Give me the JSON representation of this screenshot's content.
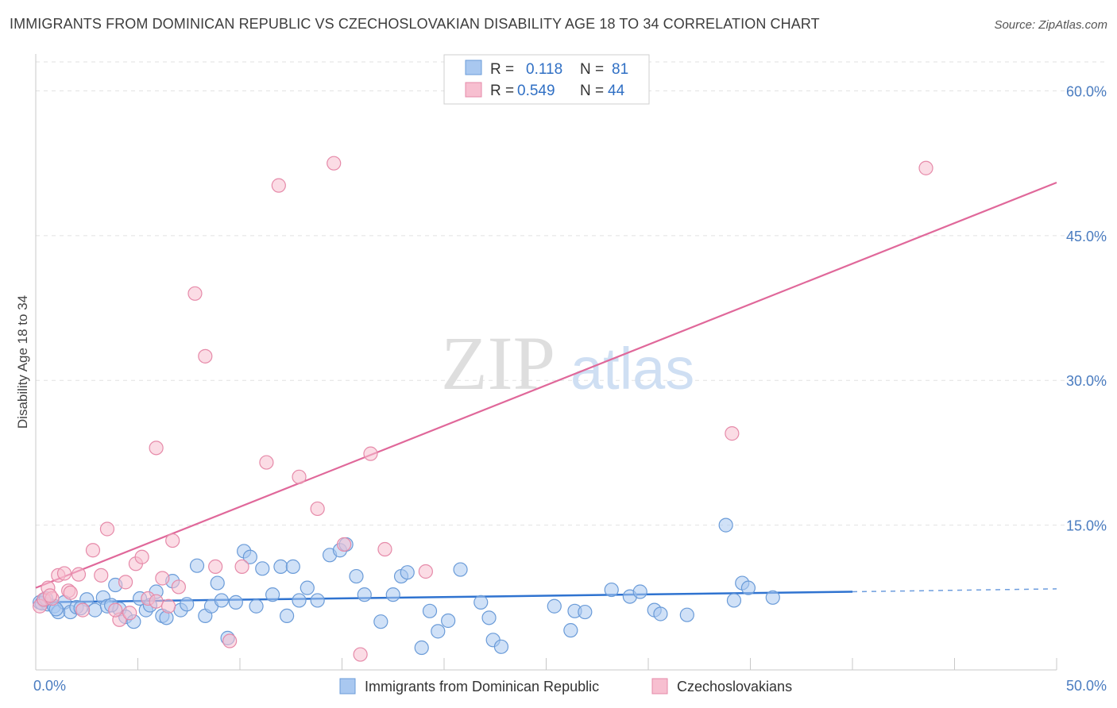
{
  "title": "IMMIGRANTS FROM DOMINICAN REPUBLIC VS CZECHOSLOVAKIAN DISABILITY AGE 18 TO 34 CORRELATION CHART",
  "source": "Source: ZipAtlas.com",
  "watermark": {
    "zip": "ZIP",
    "atlas": "atlas"
  },
  "legend": {
    "r_label": "R =",
    "n_label": "N =",
    "rows": [
      {
        "r": "0.118",
        "n": "81"
      },
      {
        "r": "0.549",
        "n": "44"
      }
    ]
  },
  "chart_data": {
    "type": "scatter",
    "title": "IMMIGRANTS FROM DOMINICAN REPUBLIC VS CZECHOSLOVAKIAN DISABILITY AGE 18 TO 34 CORRELATION CHART",
    "ylabel": "Disability Age 18 to 34",
    "xlabel": "",
    "xlim": [
      0,
      50
    ],
    "ylim": [
      0,
      63
    ],
    "x_tick_labels": [
      "0.0%",
      "50.0%"
    ],
    "y_ticks": [
      15,
      30,
      45,
      60
    ],
    "y_tick_labels": [
      "15.0%",
      "30.0%",
      "45.0%",
      "60.0%"
    ],
    "grid": true,
    "legend_position": "top-center",
    "series": [
      {
        "name": "Immigrants from Dominican Republic",
        "color": "#a9c8f0",
        "stroke": "#6a9bd8",
        "line_color": "#2f73d0",
        "trend": {
          "x0": 0,
          "y0": 7.0,
          "x1": 40,
          "y1": 8.1,
          "dash_to_x": 50,
          "dash_to_y": 8.4
        },
        "points": [
          [
            0.2,
            7.0
          ],
          [
            0.4,
            7.2
          ],
          [
            0.6,
            6.8
          ],
          [
            0.9,
            6.6
          ],
          [
            1.1,
            6.0
          ],
          [
            1.4,
            7.0
          ],
          [
            1.7,
            6.0
          ],
          [
            2.0,
            6.5
          ],
          [
            2.5,
            7.3
          ],
          [
            2.9,
            6.2
          ],
          [
            3.3,
            7.5
          ],
          [
            3.5,
            6.6
          ],
          [
            3.9,
            8.8
          ],
          [
            4.1,
            6.3
          ],
          [
            4.4,
            5.5
          ],
          [
            4.8,
            5.0
          ],
          [
            5.1,
            7.4
          ],
          [
            5.4,
            6.2
          ],
          [
            5.9,
            8.1
          ],
          [
            6.2,
            5.6
          ],
          [
            6.7,
            9.2
          ],
          [
            7.1,
            6.2
          ],
          [
            7.4,
            6.8
          ],
          [
            7.9,
            10.8
          ],
          [
            8.3,
            5.6
          ],
          [
            8.6,
            6.6
          ],
          [
            8.9,
            9.0
          ],
          [
            9.4,
            3.3
          ],
          [
            9.8,
            7.0
          ],
          [
            10.2,
            12.3
          ],
          [
            10.5,
            11.7
          ],
          [
            10.8,
            6.6
          ],
          [
            11.1,
            10.5
          ],
          [
            11.6,
            7.8
          ],
          [
            12.0,
            10.7
          ],
          [
            12.3,
            5.6
          ],
          [
            12.6,
            10.7
          ],
          [
            12.9,
            7.2
          ],
          [
            13.3,
            8.5
          ],
          [
            13.8,
            7.2
          ],
          [
            14.4,
            11.9
          ],
          [
            14.9,
            12.4
          ],
          [
            15.2,
            13.0
          ],
          [
            15.7,
            9.7
          ],
          [
            16.1,
            7.8
          ],
          [
            16.9,
            5.0
          ],
          [
            17.5,
            7.8
          ],
          [
            17.9,
            9.7
          ],
          [
            18.2,
            10.1
          ],
          [
            18.9,
            2.3
          ],
          [
            19.3,
            6.1
          ],
          [
            19.7,
            4.0
          ],
          [
            20.2,
            5.1
          ],
          [
            20.8,
            10.4
          ],
          [
            21.8,
            7.0
          ],
          [
            22.2,
            5.4
          ],
          [
            22.4,
            3.1
          ],
          [
            22.8,
            2.4
          ],
          [
            25.4,
            6.6
          ],
          [
            26.2,
            4.1
          ],
          [
            26.4,
            6.1
          ],
          [
            26.9,
            6.0
          ],
          [
            28.2,
            8.3
          ],
          [
            29.1,
            7.6
          ],
          [
            29.6,
            8.1
          ],
          [
            30.3,
            6.2
          ],
          [
            30.6,
            5.8
          ],
          [
            31.9,
            5.7
          ],
          [
            33.8,
            15.0
          ],
          [
            34.2,
            7.2
          ],
          [
            34.6,
            9.0
          ],
          [
            34.9,
            8.5
          ],
          [
            36.1,
            7.5
          ],
          [
            0.3,
            6.9
          ],
          [
            0.5,
            7.4
          ],
          [
            1.0,
            6.3
          ],
          [
            2.2,
            6.4
          ],
          [
            3.7,
            6.7
          ],
          [
            5.6,
            6.7
          ],
          [
            6.4,
            5.4
          ],
          [
            9.1,
            7.2
          ]
        ]
      },
      {
        "name": "Czechoslovakians",
        "color": "#f7bfd0",
        "stroke": "#e68aa9",
        "line_color": "#e0689a",
        "trend": {
          "x0": 0,
          "y0": 8.5,
          "x1": 50,
          "y1": 50.5
        },
        "points": [
          [
            0.2,
            6.6
          ],
          [
            0.4,
            7.3
          ],
          [
            0.6,
            8.5
          ],
          [
            0.8,
            7.4
          ],
          [
            1.1,
            9.8
          ],
          [
            1.4,
            10.0
          ],
          [
            1.6,
            8.2
          ],
          [
            2.1,
            9.9
          ],
          [
            2.3,
            6.2
          ],
          [
            2.8,
            12.4
          ],
          [
            3.2,
            9.8
          ],
          [
            3.5,
            14.6
          ],
          [
            4.1,
            5.2
          ],
          [
            4.4,
            9.1
          ],
          [
            4.6,
            5.9
          ],
          [
            4.9,
            11.0
          ],
          [
            5.2,
            11.7
          ],
          [
            5.5,
            7.4
          ],
          [
            5.9,
            7.1
          ],
          [
            6.2,
            9.5
          ],
          [
            6.5,
            6.6
          ],
          [
            6.7,
            13.4
          ],
          [
            7.0,
            8.6
          ],
          [
            7.8,
            39.0
          ],
          [
            8.3,
            32.5
          ],
          [
            8.8,
            10.7
          ],
          [
            9.5,
            3.0
          ],
          [
            10.1,
            10.7
          ],
          [
            11.3,
            21.5
          ],
          [
            11.9,
            50.2
          ],
          [
            12.9,
            20.0
          ],
          [
            13.8,
            16.7
          ],
          [
            14.6,
            52.5
          ],
          [
            15.1,
            13.0
          ],
          [
            15.9,
            1.6
          ],
          [
            16.4,
            22.4
          ],
          [
            17.1,
            12.5
          ],
          [
            19.1,
            10.2
          ],
          [
            5.9,
            23.0
          ],
          [
            34.1,
            24.5
          ],
          [
            43.6,
            52.0
          ],
          [
            1.7,
            8.0
          ],
          [
            0.7,
            7.7
          ],
          [
            3.9,
            6.2
          ]
        ]
      }
    ]
  }
}
